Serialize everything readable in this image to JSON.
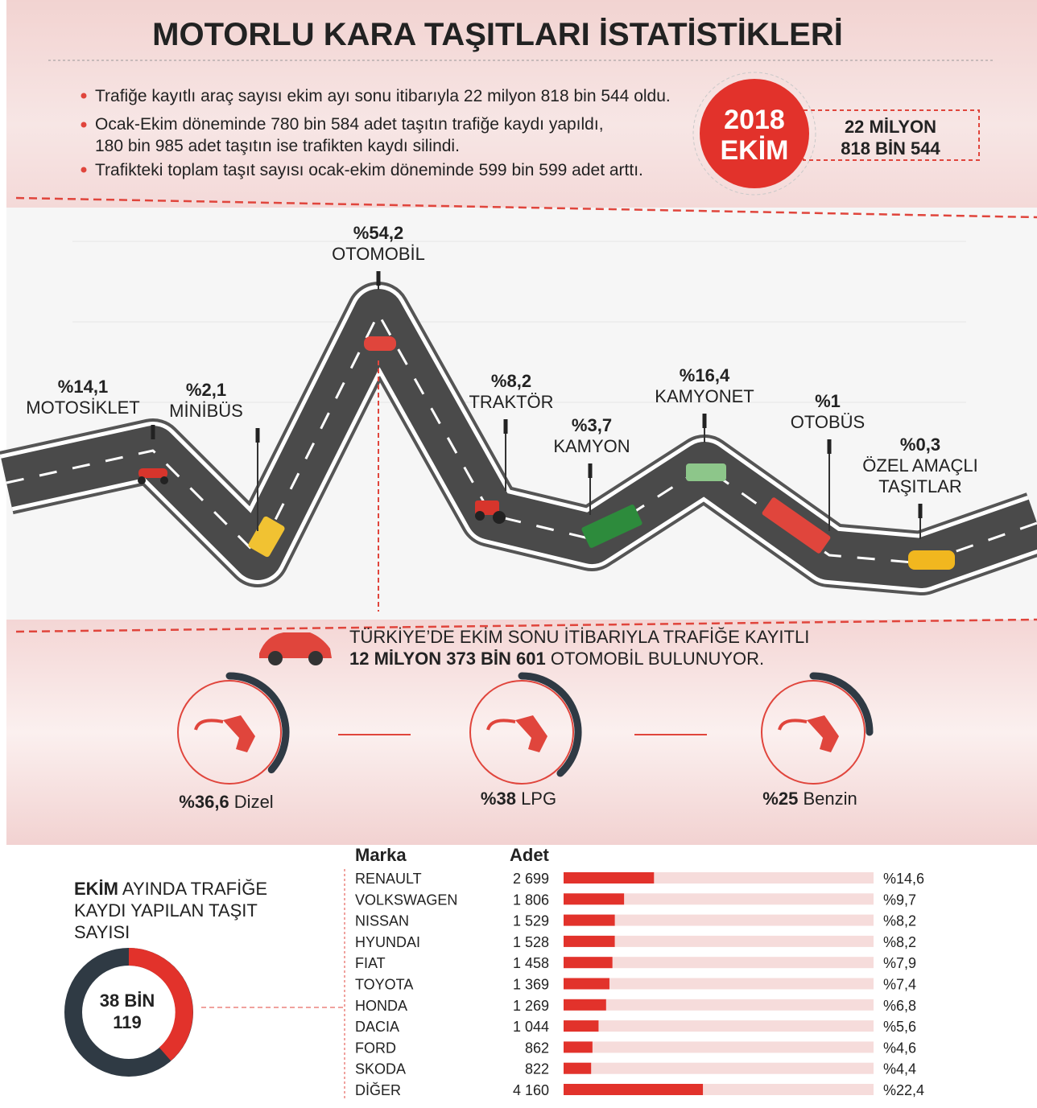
{
  "title": "MOTORLU KARA TAŞITLARI İSTATİSTİKLERİ",
  "bullets": [
    [
      "Trafiğe kayıtlı araç sayısı ekim ayı sonu itibarıyla 22 milyon 818 bin 544 oldu."
    ],
    [
      "Ocak-Ekim döneminde 780 bin 584 adet taşıtın trafiğe kaydı yapıldı,",
      "180 bin 985 adet taşıtın ise trafikten kaydı silindi."
    ],
    [
      "Trafikteki toplam taşıt sayısı ocak-ekim döneminde 599 bin 599 adet arttı."
    ]
  ],
  "badge": [
    "2018",
    "EKİM"
  ],
  "total": [
    "22 MİLYON",
    "818 BİN 544"
  ],
  "vehicles": [
    {
      "percent": "%14,1",
      "name": [
        "MOTOSİKLET"
      ]
    },
    {
      "percent": "%2,1",
      "name": [
        "MİNİBÜS"
      ]
    },
    {
      "percent": "%54,2",
      "name": [
        "OTOMOBİL"
      ]
    },
    {
      "percent": "%8,2",
      "name": [
        "TRAKTÖR"
      ]
    },
    {
      "percent": "%3,7",
      "name": [
        "KAMYON"
      ]
    },
    {
      "percent": "%16,4",
      "name": [
        "KAMYONET"
      ]
    },
    {
      "percent": "%1",
      "name": [
        "OTOBÜS"
      ]
    },
    {
      "percent": "%0,3",
      "name": [
        "ÖZEL AMAÇLI",
        "TAŞITLAR"
      ]
    }
  ],
  "car_note": {
    "line1": "TÜRKİYE’DE EKİM SONU İTİBARIYLA TRAFİĞE KAYITLI",
    "bold": "12 MİLYON 373 BİN 601",
    "rest": "OTOMOBİL BULUNUYOR."
  },
  "fuels": [
    {
      "value": 36.6,
      "percent": "%36,6",
      "name": "Dizel"
    },
    {
      "value": 38,
      "percent": "%38",
      "name": "LPG"
    },
    {
      "value": 25,
      "percent": "%25",
      "name": "Benzin"
    }
  ],
  "registrations": {
    "heading_bold": "EKİM",
    "heading": [
      "AYINDA TRAFİĞE",
      "KAYDI YAPILAN TAŞIT",
      "SAYISI"
    ],
    "total": [
      "38 BİN",
      "119"
    ]
  },
  "brands": {
    "headers": [
      "Marka",
      "Adet"
    ],
    "rows": [
      {
        "name": "RENAULT",
        "count": 2699,
        "count_label": "2 699",
        "share": "%14,6"
      },
      {
        "name": "VOLKSWAGEN",
        "count": 1806,
        "count_label": "1 806",
        "share": "%9,7"
      },
      {
        "name": "NISSAN",
        "count": 1529,
        "count_label": "1 529",
        "share": "%8,2"
      },
      {
        "name": "HYUNDAI",
        "count": 1528,
        "count_label": "1 528",
        "share": "%8,2"
      },
      {
        "name": "FIAT",
        "count": 1458,
        "count_label": "1 458",
        "share": "%7,9"
      },
      {
        "name": "TOYOTA",
        "count": 1369,
        "count_label": "1 369",
        "share": "%7,4"
      },
      {
        "name": "HONDA",
        "count": 1269,
        "count_label": "1 269",
        "share": "%6,8"
      },
      {
        "name": "DACIA",
        "count": 1044,
        "count_label": "1 044",
        "share": "%5,6"
      },
      {
        "name": "FORD",
        "count": 862,
        "count_label": "862",
        "share": "%4,6"
      },
      {
        "name": "SKODA",
        "count": 822,
        "count_label": "822",
        "share": "%4,4"
      },
      {
        "name": "DİĞER",
        "count": 4160,
        "count_label": "4 160",
        "share": "%22,4"
      }
    ]
  }
}
